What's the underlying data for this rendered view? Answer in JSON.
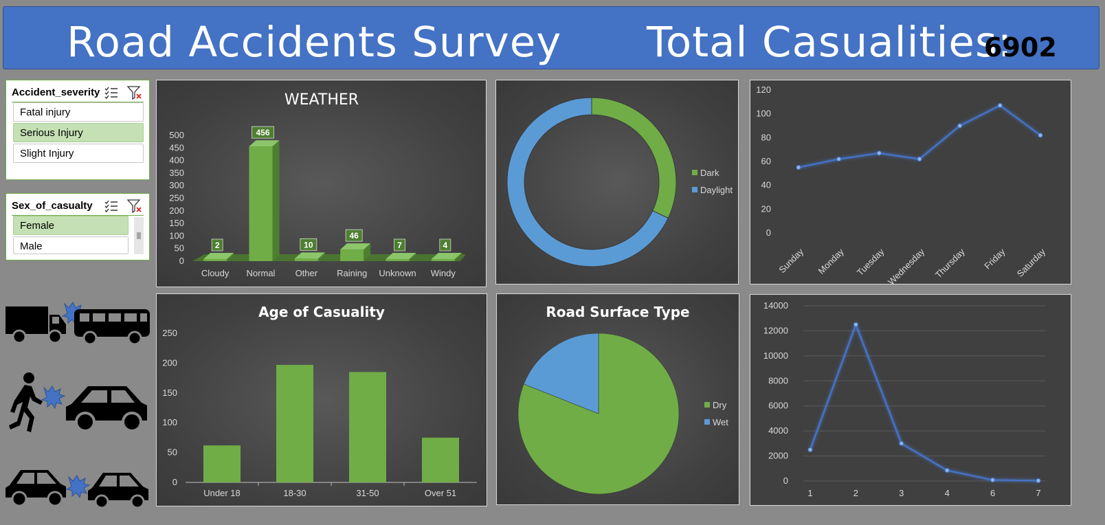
{
  "header": {
    "title": "Road Accidents Survey",
    "total_label": "Total Casualities:",
    "total_value": "6902"
  },
  "slicers": {
    "severity": {
      "title": "Accident_severity",
      "items": [
        {
          "label": "Fatal injury",
          "selected": false
        },
        {
          "label": "Serious Injury",
          "selected": true
        },
        {
          "label": "Slight Injury",
          "selected": false
        }
      ]
    },
    "sex": {
      "title": "Sex_of_casualty",
      "items": [
        {
          "label": "Female",
          "selected": true
        },
        {
          "label": "Male",
          "selected": false
        }
      ]
    }
  },
  "icons": [
    "truck-bus-collision-icon",
    "pedestrian-car-collision-icon",
    "car-car-collision-icon"
  ],
  "colors": {
    "header": "#4472c4",
    "green": "#70ad47",
    "blue": "#5b9bd5",
    "line_blue": "#4472c4",
    "panel": "#404040",
    "selected": "#c5e0b4"
  },
  "chart_data": [
    {
      "id": "weather",
      "type": "bar",
      "title": "WEATHER",
      "categories": [
        "Cloudy",
        "Normal",
        "Other",
        "Raining",
        "Unknown",
        "Windy"
      ],
      "values": [
        2,
        456,
        10,
        46,
        7,
        4
      ],
      "yticks": [
        0,
        50,
        100,
        150,
        200,
        250,
        300,
        350,
        400,
        450,
        500
      ],
      "ylim": [
        0,
        500
      ],
      "data_labels": true
    },
    {
      "id": "light",
      "type": "pie",
      "variant": "donut",
      "title": "",
      "series": [
        {
          "name": "Dark",
          "value": 32,
          "color": "#70ad47"
        },
        {
          "name": "Daylight",
          "value": 68,
          "color": "#5b9bd5"
        }
      ],
      "legend": "right"
    },
    {
      "id": "days",
      "type": "line",
      "title": "",
      "categories": [
        "Sunday",
        "Monday",
        "Tuesday",
        "Wednesday",
        "Thursday",
        "Friday",
        "Saturday"
      ],
      "values": [
        55,
        62,
        67,
        62,
        90,
        107,
        82
      ],
      "yticks": [
        0,
        20,
        40,
        60,
        80,
        100,
        120
      ],
      "ylim": [
        0,
        120
      ]
    },
    {
      "id": "age",
      "type": "bar",
      "title": "Age of Casuality",
      "categories": [
        "Under 18",
        "18-30",
        "31-50",
        "Over 51"
      ],
      "values": [
        62,
        197,
        185,
        75
      ],
      "yticks": [
        0,
        50,
        100,
        150,
        200,
        250
      ],
      "ylim": [
        0,
        250
      ]
    },
    {
      "id": "surface",
      "type": "pie",
      "title": "Road Surface Type",
      "series": [
        {
          "name": "Dry",
          "value": 81,
          "color": "#70ad47"
        },
        {
          "name": "Wet",
          "value": 19,
          "color": "#5b9bd5"
        }
      ],
      "legend": "right"
    },
    {
      "id": "vehicles",
      "type": "line",
      "title": "",
      "categories": [
        "1",
        "2",
        "3",
        "4",
        "6",
        "7"
      ],
      "values": [
        2500,
        12500,
        3000,
        850,
        80,
        30
      ],
      "yticks": [
        0,
        2000,
        4000,
        6000,
        8000,
        10000,
        12000,
        14000
      ],
      "ylim": [
        0,
        14000
      ]
    }
  ]
}
